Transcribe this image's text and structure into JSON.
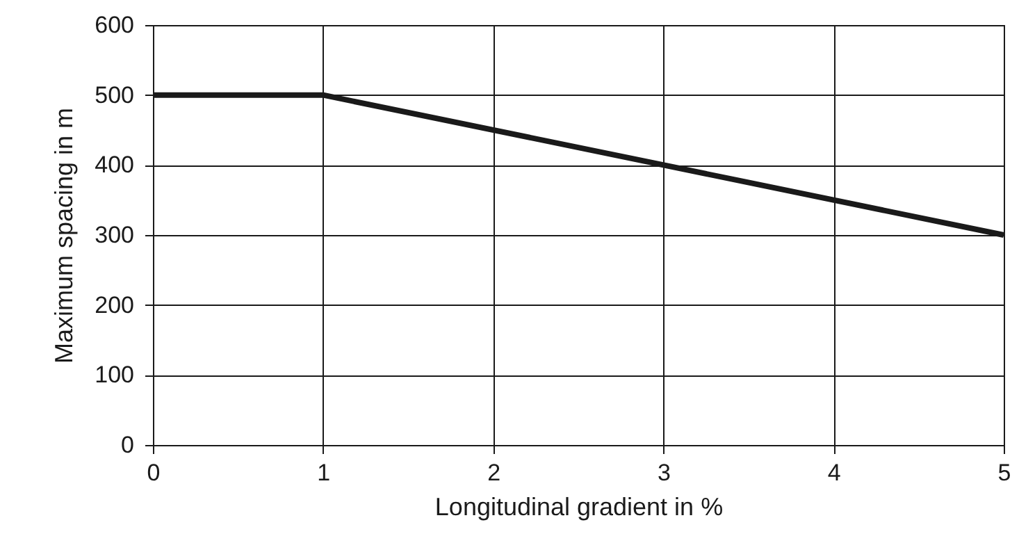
{
  "chart_data": {
    "type": "line",
    "xlabel": "Longitudinal gradient in %",
    "ylabel": "Maximum spacing in m",
    "x": [
      0,
      1,
      5
    ],
    "series": [
      {
        "color": "#1a1a1a",
        "values": [
          500,
          500,
          300
        ]
      }
    ],
    "xlim": [
      0,
      5
    ],
    "xticks": [
      0,
      1,
      2,
      3,
      4,
      5
    ],
    "ylim": [
      0,
      600
    ],
    "yticks": [
      0,
      100,
      200,
      300,
      400,
      500,
      600
    ],
    "grid": true,
    "marker": "none",
    "line_style": "solid"
  }
}
